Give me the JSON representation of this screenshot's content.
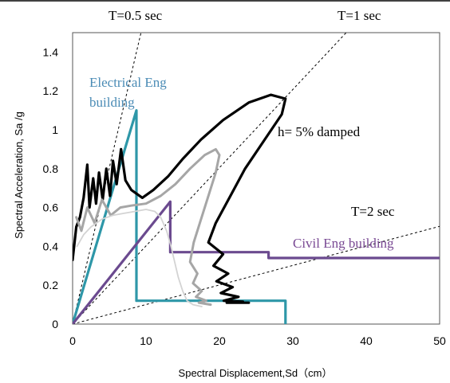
{
  "chart_data": {
    "type": "line",
    "title": "",
    "xlabel": "Spectral Displacement,Sd（cm）",
    "ylabel": "Spectral Acceleration, Sa /g",
    "xlim": [
      0,
      50
    ],
    "ylim": [
      0,
      1.5
    ],
    "x_ticks": [
      "0",
      "10",
      "20",
      "30",
      "40",
      "50"
    ],
    "y_ticks": [
      "0",
      "0.2",
      "0.4",
      "0.6",
      "0.8",
      "1",
      "1.2",
      "1.4"
    ],
    "grid": false,
    "period_lines": [
      {
        "label": "T=0.5 sec",
        "period_sec": 0.5,
        "style": "dashed"
      },
      {
        "label": "T=1 sec",
        "period_sec": 1,
        "style": "dashed"
      },
      {
        "label": "T=2 sec",
        "period_sec": 2,
        "style": "dashed"
      }
    ],
    "annotations": [
      {
        "text": "Electrical  Eng",
        "color": "#4a8bb5"
      },
      {
        "text": "building",
        "color": "#4a8bb5"
      },
      {
        "text": "h= 5% damped",
        "color": "#000000"
      },
      {
        "text": "Civil Eng building",
        "color": "#7a4a94"
      }
    ],
    "series": [
      {
        "color": "#2e97a8",
        "values": [
          [
            0,
            0
          ],
          [
            8.7,
            1.1
          ],
          [
            8.7,
            0.12
          ],
          [
            29,
            0.12
          ],
          [
            29,
            0
          ]
        ]
      },
      {
        "color": "#6b4a8f",
        "values": [
          [
            0,
            0
          ],
          [
            13.3,
            0.63
          ],
          [
            13.3,
            0.37
          ],
          [
            26.7,
            0.37
          ],
          [
            26.7,
            0.34
          ],
          [
            50,
            0.34
          ]
        ]
      },
      {
        "color": "#000000",
        "values": [
          [
            0,
            0.33
          ],
          [
            0.5,
            0.5
          ],
          [
            1,
            0.55
          ],
          [
            1.5,
            0.65
          ],
          [
            2,
            0.82
          ],
          [
            2.3,
            0.6
          ],
          [
            2.8,
            0.75
          ],
          [
            3.2,
            0.62
          ],
          [
            3.6,
            0.78
          ],
          [
            4.1,
            0.64
          ],
          [
            4.6,
            0.8
          ],
          [
            5.1,
            0.66
          ],
          [
            5.5,
            0.84
          ],
          [
            6,
            0.72
          ],
          [
            6.6,
            0.9
          ],
          [
            7.2,
            0.74
          ],
          [
            8,
            0.69
          ],
          [
            9.5,
            0.65
          ],
          [
            11,
            0.69
          ],
          [
            13,
            0.76
          ],
          [
            15,
            0.85
          ],
          [
            17.5,
            0.95
          ],
          [
            20.5,
            1.05
          ],
          [
            24,
            1.14
          ],
          [
            27,
            1.18
          ],
          [
            29,
            1.16
          ],
          [
            28.5,
            1.08
          ],
          [
            26,
            0.94
          ],
          [
            23.5,
            0.8
          ],
          [
            21.5,
            0.66
          ],
          [
            19.5,
            0.52
          ],
          [
            18.5,
            0.42
          ],
          [
            20.5,
            0.36
          ],
          [
            19.2,
            0.3
          ],
          [
            21.2,
            0.26
          ],
          [
            19.6,
            0.22
          ],
          [
            21.8,
            0.19
          ],
          [
            20.2,
            0.16
          ],
          [
            22.6,
            0.14
          ],
          [
            20.6,
            0.12
          ],
          [
            23.2,
            0.115
          ],
          [
            21,
            0.11
          ],
          [
            24,
            0.11
          ]
        ]
      },
      {
        "color": "#a6a6a6",
        "values": [
          [
            0.5,
            0.55
          ],
          [
            1.2,
            0.48
          ],
          [
            2,
            0.6
          ],
          [
            3,
            0.52
          ],
          [
            4,
            0.64
          ],
          [
            5.2,
            0.56
          ],
          [
            6.5,
            0.6
          ],
          [
            8,
            0.61
          ],
          [
            10,
            0.62
          ],
          [
            12,
            0.66
          ],
          [
            14,
            0.72
          ],
          [
            16,
            0.8
          ],
          [
            18,
            0.87
          ],
          [
            19.5,
            0.9
          ],
          [
            20,
            0.87
          ],
          [
            19.5,
            0.78
          ],
          [
            18.5,
            0.66
          ],
          [
            17.5,
            0.54
          ],
          [
            16.5,
            0.42
          ],
          [
            16,
            0.32
          ],
          [
            17,
            0.26
          ],
          [
            16.4,
            0.21
          ],
          [
            17.6,
            0.17
          ],
          [
            16.8,
            0.14
          ],
          [
            18.2,
            0.12
          ],
          [
            17.2,
            0.11
          ],
          [
            18.8,
            0.1
          ]
        ]
      },
      {
        "color": "#d3d3d3",
        "values": [
          [
            0.6,
            0.4
          ],
          [
            1.5,
            0.46
          ],
          [
            2.5,
            0.5
          ],
          [
            4,
            0.54
          ],
          [
            5.5,
            0.56
          ],
          [
            7,
            0.57
          ],
          [
            8.5,
            0.58
          ],
          [
            10,
            0.59
          ],
          [
            11.2,
            0.58
          ],
          [
            12,
            0.55
          ],
          [
            12.8,
            0.48
          ],
          [
            13.4,
            0.4
          ],
          [
            13.9,
            0.32
          ],
          [
            14.4,
            0.24
          ],
          [
            15,
            0.17
          ],
          [
            15.6,
            0.12
          ],
          [
            16.4,
            0.1
          ],
          [
            17.6,
            0.09
          ]
        ]
      }
    ]
  }
}
